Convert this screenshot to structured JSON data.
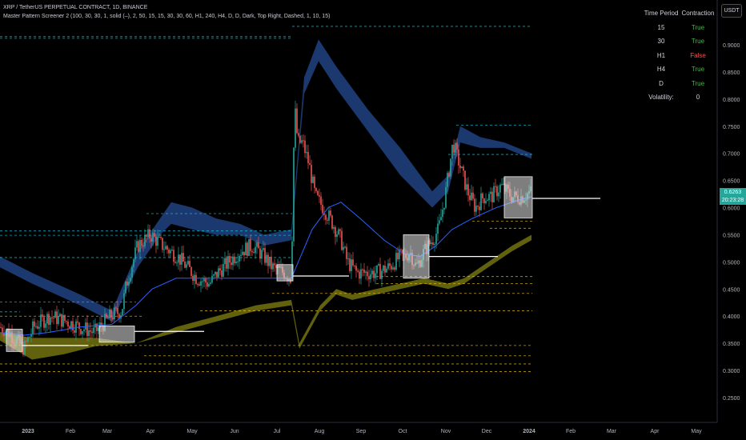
{
  "header": {
    "symbol_line": "XRP / TetherUS PERPETUAL CONTRACT, 1D, BINANCE",
    "indicator_line": "Master Pattern Screener 2 (100, 30, 30, 1, solid (–), 2, 50, 15, 15, 30, 30, 60, H1, 240, H4, D, D, Dark, Top Right, Dashed, 1, 10, 15)"
  },
  "currency_button": "USDT",
  "last_price": {
    "value": "0.6263",
    "countdown": "20:23:28"
  },
  "table": {
    "headers": [
      "Time Period",
      "Contraction"
    ],
    "rows": [
      {
        "period": "15",
        "value": "True",
        "color": "#4caf50"
      },
      {
        "period": "30",
        "value": "True",
        "color": "#4caf50"
      },
      {
        "period": "H1",
        "value": "False",
        "color": "#ef5350"
      },
      {
        "period": "H4",
        "value": "True",
        "color": "#4caf50"
      },
      {
        "period": "D",
        "value": "True",
        "color": "#4caf50"
      }
    ],
    "volatility_label": "Volatility:",
    "volatility_value": "0"
  },
  "chart_data": {
    "type": "line",
    "title": "XRP / TetherUS PERPETUAL CONTRACT, 1D, BINANCE",
    "x_ticks": [
      "2023",
      "Feb",
      "Mar",
      "Apr",
      "May",
      "Jun",
      "Jul",
      "Aug",
      "Sep",
      "Oct",
      "Nov",
      "Dec",
      "2024",
      "Feb",
      "Mar",
      "Apr",
      "May"
    ],
    "y_ticks": [
      "0.9000",
      "0.8500",
      "0.8000",
      "0.7500",
      "0.7000",
      "0.6500",
      "0.6000",
      "0.5500",
      "0.5000",
      "0.4500",
      "0.4000",
      "0.3500",
      "0.3000",
      "0.2500"
    ],
    "ylim": [
      0.22,
      0.96
    ],
    "colors": {
      "up": "#26a69a",
      "down": "#ef5350",
      "ma": "#2962ff",
      "upper_band": "#1e3f7a",
      "lower_band": "#6b6b10",
      "box": "#d8d8d8"
    },
    "series": [
      {
        "x": [
          0,
          12,
          30,
          42,
          62,
          84,
          100,
          118,
          138,
          152,
          158,
          172,
          188,
          203,
          222,
          246,
          262,
          272,
          286,
          300,
          316,
          330,
          340,
          355,
          364
        ],
        "values": [
          0.38,
          0.37,
          0.34,
          0.38,
          0.4,
          0.39,
          0.38,
          0.37,
          0.4,
          0.41,
          0.46,
          0.53,
          0.55,
          0.53,
          0.51,
          0.47,
          0.46,
          0.48,
          0.5,
          0.52,
          0.53,
          0.51,
          0.49,
          0.48,
          0.47
        ]
      },
      {
        "x": [
          364,
          368,
          372,
          378,
          386,
          394,
          404,
          416,
          426,
          434,
          446,
          458,
          470,
          486,
          500,
          506,
          512,
          520,
          530,
          540,
          548,
          556,
          566,
          574,
          584,
          594,
          604,
          614,
          626,
          640,
          652,
          664
        ],
        "values": [
          0.47,
          0.79,
          0.72,
          0.72,
          0.68,
          0.62,
          0.6,
          0.57,
          0.54,
          0.5,
          0.48,
          0.48,
          0.48,
          0.49,
          0.51,
          0.51,
          0.52,
          0.49,
          0.52,
          0.54,
          0.56,
          0.62,
          0.72,
          0.68,
          0.63,
          0.6,
          0.62,
          0.62,
          0.64,
          0.62,
          0.62,
          0.63
        ]
      }
    ],
    "moving_average": {
      "x": [
        0,
        30,
        60,
        100,
        140,
        170,
        190,
        220,
        260,
        300,
        330,
        364,
        390,
        410,
        426,
        450,
        480,
        505,
        525,
        545,
        565,
        590,
        620,
        650,
        664
      ],
      "values": [
        0.37,
        0.365,
        0.37,
        0.38,
        0.385,
        0.42,
        0.45,
        0.47,
        0.47,
        0.47,
        0.47,
        0.47,
        0.56,
        0.6,
        0.61,
        0.58,
        0.54,
        0.515,
        0.51,
        0.53,
        0.56,
        0.58,
        0.6,
        0.615,
        0.62
      ]
    },
    "upper_band": {
      "x": [
        0,
        40,
        100,
        140,
        172,
        200,
        214,
        240,
        270,
        300,
        330,
        364,
        380,
        398,
        420,
        460,
        500,
        540,
        560,
        575,
        600,
        630,
        664
      ],
      "top": [
        0.51,
        0.48,
        0.44,
        0.41,
        0.52,
        0.58,
        0.61,
        0.6,
        0.58,
        0.57,
        0.55,
        0.56,
        0.84,
        0.91,
        0.86,
        0.78,
        0.71,
        0.63,
        0.66,
        0.75,
        0.73,
        0.72,
        0.7
      ],
      "bottom": [
        0.49,
        0.46,
        0.42,
        0.39,
        0.49,
        0.55,
        0.57,
        0.56,
        0.55,
        0.55,
        0.53,
        0.54,
        0.81,
        0.87,
        0.82,
        0.74,
        0.66,
        0.6,
        0.63,
        0.72,
        0.71,
        0.71,
        0.69
      ]
    },
    "lower_band": {
      "x": [
        0,
        40,
        80,
        120,
        170,
        220,
        270,
        320,
        364,
        374,
        400,
        420,
        440,
        470,
        500,
        530,
        560,
        580,
        610,
        640,
        664
      ],
      "top": [
        0.37,
        0.36,
        0.36,
        0.36,
        0.35,
        0.38,
        0.4,
        0.42,
        0.43,
        0.35,
        0.42,
        0.45,
        0.44,
        0.45,
        0.46,
        0.47,
        0.46,
        0.47,
        0.5,
        0.53,
        0.55
      ],
      "bottom": [
        0.355,
        0.32,
        0.33,
        0.345,
        0.35,
        0.37,
        0.39,
        0.41,
        0.42,
        0.34,
        0.41,
        0.44,
        0.43,
        0.44,
        0.45,
        0.46,
        0.45,
        0.46,
        0.49,
        0.52,
        0.54
      ]
    },
    "boxes": [
      {
        "x0": 8,
        "x1": 28,
        "y_top": 0.376,
        "y_bottom": 0.335
      },
      {
        "x0": 124,
        "x1": 168,
        "y_top": 0.382,
        "y_bottom": 0.352
      },
      {
        "x0": 346,
        "x1": 366,
        "y_top": 0.495,
        "y_bottom": 0.465
      },
      {
        "x0": 504,
        "x1": 536,
        "y_top": 0.55,
        "y_bottom": 0.47
      },
      {
        "x0": 630,
        "x1": 665,
        "y_top": 0.657,
        "y_bottom": 0.581
      }
    ],
    "breakout_lines": [
      {
        "x0": 28,
        "x1": 110,
        "y": 0.346
      },
      {
        "x0": 168,
        "x1": 255,
        "y": 0.372
      },
      {
        "x0": 366,
        "x1": 436,
        "y": 0.474
      },
      {
        "x0": 536,
        "x1": 622,
        "y": 0.51
      },
      {
        "x0": 665,
        "x1": 750,
        "y": 0.617
      }
    ],
    "dashed_levels_cyan": [
      {
        "x0": 0,
        "x1": 25,
        "y": 0.408
      },
      {
        "x0": 0,
        "x1": 170,
        "y": 0.426
      },
      {
        "x0": 0,
        "x1": 365,
        "y": 0.508
      },
      {
        "x0": 0,
        "x1": 365,
        "y": 0.549
      },
      {
        "x0": 0,
        "x1": 365,
        "y": 0.557
      },
      {
        "x0": 183,
        "x1": 365,
        "y": 0.589
      },
      {
        "x0": 365,
        "x1": 665,
        "y": 0.934
      },
      {
        "x0": 0,
        "x1": 365,
        "y": 0.915
      },
      {
        "x0": 0,
        "x1": 365,
        "y": 0.912
      },
      {
        "x0": 570,
        "x1": 665,
        "y": 0.752
      },
      {
        "x0": 560,
        "x1": 665,
        "y": 0.698
      }
    ],
    "dashed_levels_yellow": [
      {
        "x0": 0,
        "x1": 180,
        "y": 0.4
      },
      {
        "x0": 0,
        "x1": 665,
        "y": 0.346
      },
      {
        "x0": 0,
        "x1": 665,
        "y": 0.312
      },
      {
        "x0": 0,
        "x1": 665,
        "y": 0.298
      },
      {
        "x0": 180,
        "x1": 665,
        "y": 0.327
      },
      {
        "x0": 250,
        "x1": 665,
        "y": 0.41
      },
      {
        "x0": 340,
        "x1": 665,
        "y": 0.442
      },
      {
        "x0": 470,
        "x1": 665,
        "y": 0.46
      },
      {
        "x0": 470,
        "x1": 665,
        "y": 0.473
      },
      {
        "x0": 612,
        "x1": 665,
        "y": 0.562
      },
      {
        "x0": 590,
        "x1": 665,
        "y": 0.575
      }
    ]
  }
}
